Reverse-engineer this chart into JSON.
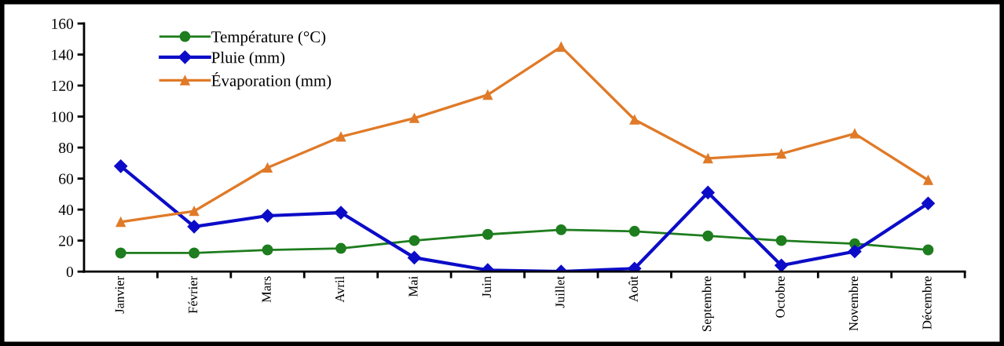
{
  "chart_data": {
    "type": "line",
    "categories": [
      "Janvier",
      "Février",
      "Mars",
      "Avril",
      "Mai",
      "Juin",
      "Juillet",
      "Août",
      "Septembre",
      "Octobre",
      "Novembre",
      "Décembre"
    ],
    "series": [
      {
        "name": "Température (°C)",
        "color": "#1e7d1e",
        "marker": "circle",
        "values": [
          12,
          12,
          14,
          15,
          20,
          24,
          27,
          26,
          23,
          20,
          18,
          14
        ]
      },
      {
        "name": "Pluie (mm)",
        "color": "#0c0cc8",
        "marker": "diamond",
        "values": [
          68,
          29,
          36,
          38,
          9,
          1,
          0,
          2,
          51,
          4,
          13,
          44
        ]
      },
      {
        "name": "Évaporation (mm)",
        "color": "#e07a28",
        "marker": "triangle",
        "values": [
          32,
          39,
          67,
          87,
          99,
          114,
          145,
          98,
          73,
          76,
          89,
          59
        ]
      }
    ],
    "ylim": [
      0,
      160
    ],
    "yticks": [
      0,
      20,
      40,
      60,
      80,
      100,
      120,
      140,
      160
    ],
    "grid": false,
    "legend": "top left",
    "line_style": "solid"
  }
}
